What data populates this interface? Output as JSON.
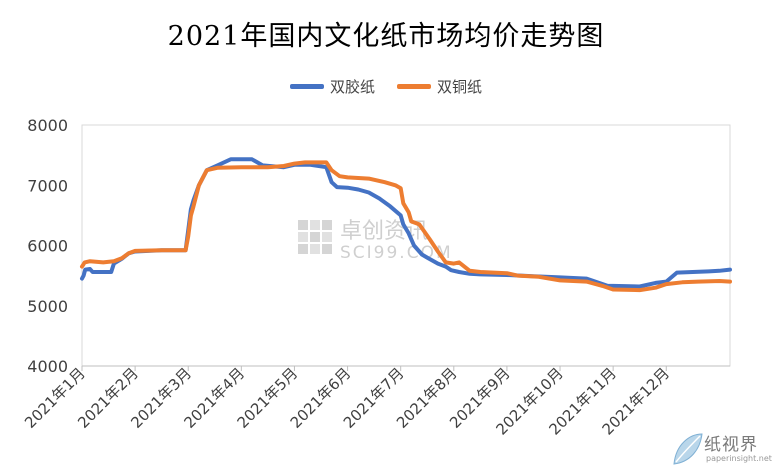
{
  "chart_data": {
    "type": "line",
    "title": "2021年国内文化纸市场均价走势图",
    "xlabel": "",
    "ylabel": "",
    "ylim": [
      4000,
      8000
    ],
    "yticks": [
      4000,
      5000,
      6000,
      7000,
      8000
    ],
    "x_ticks": [
      "2021年1月",
      "2021年2月",
      "2021年3月",
      "2021年4月",
      "2021年5月",
      "2021年6月",
      "2021年7月",
      "2021年8月",
      "2021年9月",
      "2021年10月",
      "2021年11月",
      "2021年12月"
    ],
    "legend_position": "top-center",
    "grid": false,
    "series": [
      {
        "name": "双胶纸",
        "color": "#4472C4",
        "points": [
          [
            0.0,
            5450
          ],
          [
            0.03,
            5500
          ],
          [
            0.06,
            5600
          ],
          [
            0.15,
            5610
          ],
          [
            0.2,
            5560
          ],
          [
            0.55,
            5560
          ],
          [
            0.6,
            5700
          ],
          [
            0.75,
            5780
          ],
          [
            0.88,
            5870
          ],
          [
            1.0,
            5900
          ],
          [
            1.5,
            5920
          ],
          [
            1.95,
            5920
          ],
          [
            2.0,
            6250
          ],
          [
            2.05,
            6600
          ],
          [
            2.1,
            6750
          ],
          [
            2.2,
            7000
          ],
          [
            2.35,
            7250
          ],
          [
            2.55,
            7330
          ],
          [
            2.8,
            7430
          ],
          [
            3.2,
            7430
          ],
          [
            3.4,
            7330
          ],
          [
            3.8,
            7300
          ],
          [
            4.0,
            7340
          ],
          [
            4.3,
            7340
          ],
          [
            4.6,
            7300
          ],
          [
            4.7,
            7050
          ],
          [
            4.8,
            6970
          ],
          [
            5.0,
            6960
          ],
          [
            5.2,
            6930
          ],
          [
            5.4,
            6880
          ],
          [
            5.6,
            6780
          ],
          [
            5.8,
            6650
          ],
          [
            6.0,
            6500
          ],
          [
            6.05,
            6350
          ],
          [
            6.15,
            6200
          ],
          [
            6.25,
            6000
          ],
          [
            6.4,
            5850
          ],
          [
            6.5,
            5800
          ],
          [
            6.7,
            5700
          ],
          [
            6.85,
            5650
          ],
          [
            6.95,
            5590
          ],
          [
            7.1,
            5560
          ],
          [
            7.3,
            5530
          ],
          [
            7.5,
            5520
          ],
          [
            8.0,
            5510
          ],
          [
            8.5,
            5490
          ],
          [
            9.0,
            5470
          ],
          [
            9.5,
            5450
          ],
          [
            9.9,
            5330
          ],
          [
            10.0,
            5330
          ],
          [
            10.5,
            5320
          ],
          [
            10.8,
            5380
          ],
          [
            11.0,
            5400
          ],
          [
            11.2,
            5550
          ],
          [
            11.5,
            5560
          ],
          [
            11.8,
            5570
          ],
          [
            12.0,
            5580
          ],
          [
            12.2,
            5600
          ]
        ]
      },
      {
        "name": "双铜纸",
        "color": "#ED7D31",
        "points": [
          [
            0.0,
            5650
          ],
          [
            0.05,
            5720
          ],
          [
            0.15,
            5740
          ],
          [
            0.4,
            5720
          ],
          [
            0.6,
            5740
          ],
          [
            0.75,
            5790
          ],
          [
            0.88,
            5870
          ],
          [
            1.0,
            5910
          ],
          [
            1.5,
            5920
          ],
          [
            1.95,
            5920
          ],
          [
            2.0,
            6150
          ],
          [
            2.05,
            6500
          ],
          [
            2.1,
            6650
          ],
          [
            2.2,
            7000
          ],
          [
            2.35,
            7250
          ],
          [
            2.55,
            7290
          ],
          [
            3.0,
            7300
          ],
          [
            3.5,
            7300
          ],
          [
            3.8,
            7320
          ],
          [
            4.0,
            7360
          ],
          [
            4.2,
            7380
          ],
          [
            4.6,
            7380
          ],
          [
            4.7,
            7250
          ],
          [
            4.85,
            7150
          ],
          [
            5.0,
            7130
          ],
          [
            5.4,
            7110
          ],
          [
            5.7,
            7050
          ],
          [
            5.9,
            7000
          ],
          [
            6.0,
            6950
          ],
          [
            6.05,
            6700
          ],
          [
            6.15,
            6550
          ],
          [
            6.2,
            6400
          ],
          [
            6.35,
            6350
          ],
          [
            6.55,
            6100
          ],
          [
            6.7,
            5900
          ],
          [
            6.85,
            5720
          ],
          [
            7.0,
            5700
          ],
          [
            7.1,
            5720
          ],
          [
            7.3,
            5580
          ],
          [
            7.5,
            5560
          ],
          [
            8.0,
            5540
          ],
          [
            8.2,
            5500
          ],
          [
            8.6,
            5480
          ],
          [
            9.0,
            5420
          ],
          [
            9.5,
            5400
          ],
          [
            9.8,
            5330
          ],
          [
            10.0,
            5270
          ],
          [
            10.5,
            5260
          ],
          [
            10.8,
            5300
          ],
          [
            11.0,
            5360
          ],
          [
            11.3,
            5390
          ],
          [
            11.6,
            5400
          ],
          [
            12.0,
            5410
          ],
          [
            12.2,
            5400
          ]
        ]
      }
    ]
  },
  "watermark": {
    "center_cn": "卓创资讯",
    "center_en": "SCI99.COM",
    "corner_cn": "纸视界",
    "corner_url": "paperinsight.net"
  }
}
